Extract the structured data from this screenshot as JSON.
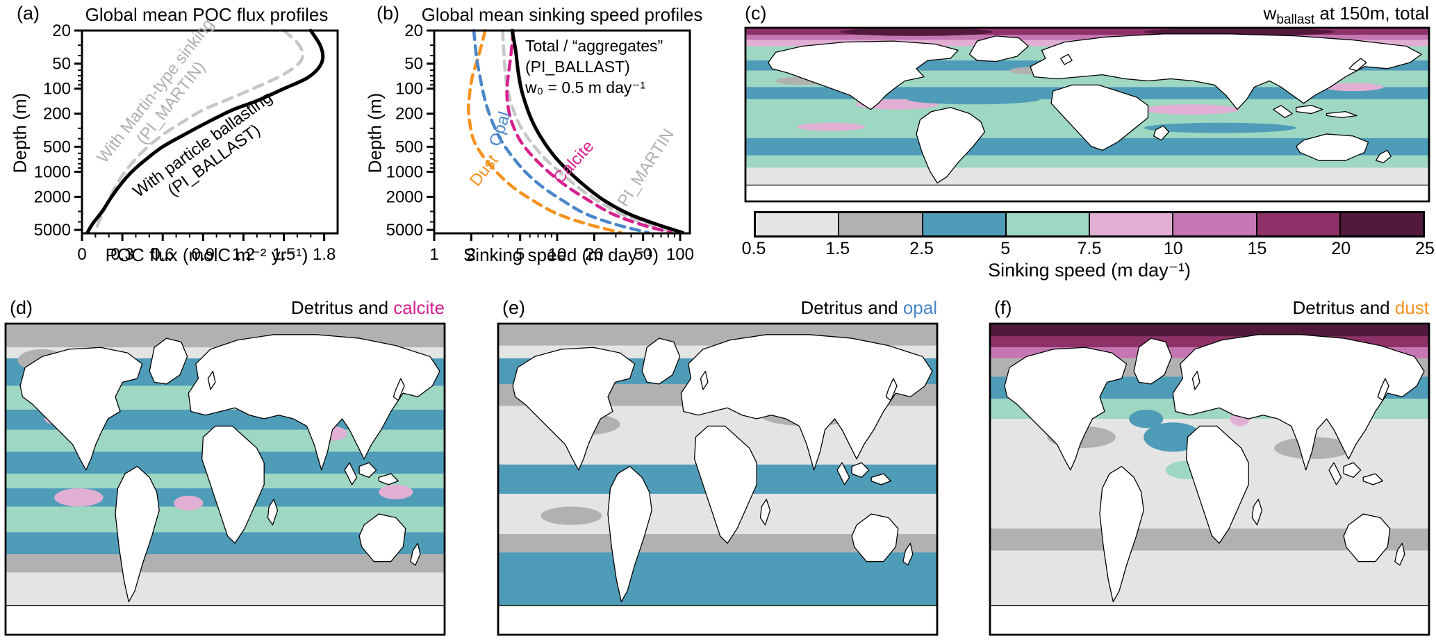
{
  "colors": {
    "black": "#000000",
    "gray_line": "#c6c6c6",
    "annotation_gray": "#b0b0b0",
    "opal_blue": "#4a86c9",
    "calcite_magenta": "#d6208e",
    "dust_orange": "#f6921e",
    "map_light_gray": "#e4e4e4",
    "map_gray": "#b1b1b1",
    "map_teal": "#4e9cb8",
    "map_seafoam": "#9ed7c2",
    "map_light_pink": "#e2afd4",
    "map_orchid": "#c477b2",
    "map_maroon": "#8f3169",
    "map_dark_maroon": "#53193d"
  },
  "panels": {
    "a": {
      "label": "(a)",
      "title": "Global mean POC flux profiles",
      "xlabel": "POC flux (molC m⁻² yr⁻¹)",
      "ylabel": "Depth (m)",
      "annotations": {
        "martin_line1": "With Martin-type sinking",
        "martin_line2": "(PI_MARTIN)",
        "ballast_line1": "With particle ballasting",
        "ballast_line2": "(PI_BALLAST)"
      }
    },
    "b": {
      "label": "(b)",
      "title": "Global mean sinking speed profiles",
      "xlabel": "Sinking speed (m day⁻¹)",
      "ylabel": "Depth (m)",
      "annotations": {
        "total_line1": "Total / “aggregates”",
        "total_line2": "(PI_BALLAST)",
        "total_line3": "w₀ = 0.5 m day⁻¹",
        "opal": "Opal",
        "calcite": "Calcite",
        "dust": "Dust",
        "martin": "PI_MARTIN"
      }
    },
    "c": {
      "label": "(c)",
      "title_prefix": "w",
      "title_sub": "ballast",
      "title_suffix": " at 150m, total",
      "colorbar_label": "Sinking speed (m day⁻¹)"
    },
    "d": {
      "label": "(d)",
      "title_prefix": "Detritus and ",
      "title_material": "calcite",
      "material_color": "#d6208e"
    },
    "e": {
      "label": "(e)",
      "title_prefix": "Detritus and ",
      "title_material": "opal",
      "material_color": "#4a86c9"
    },
    "f": {
      "label": "(f)",
      "title_prefix": "Detritus and ",
      "title_material": "dust",
      "material_color": "#f6921e"
    }
  },
  "chart_data": [
    {
      "id": "a",
      "type": "line",
      "title": "Global mean POC flux profiles",
      "xlabel": "POC flux (molC m⁻² yr⁻¹)",
      "ylabel": "Depth (m)",
      "x_scale": "linear",
      "x_range": [
        0,
        1.9
      ],
      "x_ticks": [
        0,
        0.3,
        0.6,
        0.9,
        1.2,
        1.5,
        1.8
      ],
      "x_minor": [
        0.1,
        0.2,
        0.4,
        0.5,
        0.7,
        0.8,
        1.0,
        1.1,
        1.3,
        1.4,
        1.6,
        1.7
      ],
      "y_scale": "log",
      "y_range": [
        20,
        5500
      ],
      "y_ticks": [
        20,
        50,
        100,
        200,
        500,
        1000,
        2000,
        5000
      ],
      "y_minor": [
        30,
        40,
        60,
        70,
        80,
        90,
        300,
        400,
        600,
        700,
        800,
        900,
        3000,
        4000
      ],
      "grid": false,
      "series": [
        {
          "name": "PI_MARTIN",
          "color": "#c6c6c6",
          "dash": "14 10",
          "width": 4.5,
          "points": [
            [
              1.5,
              20
            ],
            [
              1.6,
              28
            ],
            [
              1.64,
              38
            ],
            [
              1.61,
              50
            ],
            [
              1.48,
              70
            ],
            [
              1.27,
              100
            ],
            [
              1.06,
              140
            ],
            [
              0.9,
              180
            ],
            [
              0.75,
              250
            ],
            [
              0.61,
              350
            ],
            [
              0.49,
              500
            ],
            [
              0.4,
              700
            ],
            [
              0.32,
              1000
            ],
            [
              0.26,
              1400
            ],
            [
              0.21,
              2000
            ],
            [
              0.16,
              3000
            ],
            [
              0.12,
              4200
            ],
            [
              0.1,
              5400
            ]
          ]
        },
        {
          "name": "PI_BALLAST",
          "color": "#000000",
          "dash": null,
          "width": 5,
          "points": [
            [
              1.7,
              20
            ],
            [
              1.77,
              30
            ],
            [
              1.79,
              42
            ],
            [
              1.76,
              56
            ],
            [
              1.67,
              75
            ],
            [
              1.5,
              100
            ],
            [
              1.3,
              140
            ],
            [
              1.12,
              180
            ],
            [
              0.94,
              250
            ],
            [
              0.77,
              350
            ],
            [
              0.6,
              500
            ],
            [
              0.48,
              700
            ],
            [
              0.37,
              1000
            ],
            [
              0.29,
              1400
            ],
            [
              0.22,
              2000
            ],
            [
              0.15,
              3000
            ],
            [
              0.08,
              4200
            ],
            [
              0.04,
              5400
            ]
          ]
        }
      ]
    },
    {
      "id": "b",
      "type": "line",
      "title": "Global mean sinking speed profiles",
      "xlabel": "Sinking speed (m day⁻¹)",
      "ylabel": "Depth (m)",
      "x_scale": "log",
      "x_range": [
        1,
        120
      ],
      "x_ticks": [
        1,
        2,
        5,
        10,
        20,
        50,
        100
      ],
      "x_minor": [
        3,
        4,
        6,
        7,
        8,
        9,
        30,
        40,
        60,
        70,
        80,
        90
      ],
      "y_scale": "log",
      "y_range": [
        20,
        5500
      ],
      "y_ticks": [
        20,
        50,
        100,
        200,
        500,
        1000,
        2000,
        5000
      ],
      "y_minor": [
        30,
        40,
        60,
        70,
        80,
        90,
        300,
        400,
        600,
        700,
        800,
        900,
        3000,
        4000
      ],
      "grid": false,
      "w0_m_per_day": 0.5,
      "series": [
        {
          "name": "PI_MARTIN",
          "color": "#c6c6c6",
          "dash": "13 9",
          "width": 4.5,
          "points": [
            [
              3.6,
              20
            ],
            [
              3.7,
              40
            ],
            [
              3.8,
              70
            ],
            [
              4.0,
              110
            ],
            [
              4.4,
              180
            ],
            [
              5.0,
              280
            ],
            [
              6.2,
              450
            ],
            [
              8.0,
              700
            ],
            [
              10.5,
              1000
            ],
            [
              14.5,
              1500
            ],
            [
              21,
              2200
            ],
            [
              33,
              3200
            ],
            [
              55,
              4300
            ],
            [
              95,
              5400
            ]
          ]
        },
        {
          "name": "Dust",
          "color": "#f6921e",
          "dash": "13 9",
          "width": 4.5,
          "points": [
            [
              2.6,
              20
            ],
            [
              2.3,
              40
            ],
            [
              2.05,
              70
            ],
            [
              1.95,
              110
            ],
            [
              1.9,
              170
            ],
            [
              1.95,
              260
            ],
            [
              2.1,
              420
            ],
            [
              2.5,
              650
            ],
            [
              3.2,
              1000
            ],
            [
              4.3,
              1500
            ],
            [
              6.3,
              2200
            ],
            [
              10,
              3200
            ],
            [
              18,
              4300
            ],
            [
              33,
              5400
            ]
          ]
        },
        {
          "name": "Opal",
          "color": "#4a86c9",
          "dash": "13 9",
          "width": 4.5,
          "points": [
            [
              2.1,
              20
            ],
            [
              2.2,
              40
            ],
            [
              2.35,
              70
            ],
            [
              2.5,
              110
            ],
            [
              2.7,
              170
            ],
            [
              3.0,
              260
            ],
            [
              3.5,
              420
            ],
            [
              4.3,
              650
            ],
            [
              5.5,
              1000
            ],
            [
              7.5,
              1500
            ],
            [
              11,
              2200
            ],
            [
              17,
              3200
            ],
            [
              30,
              4300
            ],
            [
              55,
              5400
            ]
          ]
        },
        {
          "name": "Calcite",
          "color": "#d6208e",
          "dash": "13 9",
          "width": 4.5,
          "points": [
            [
              4.4,
              20
            ],
            [
              4.2,
              40
            ],
            [
              4.0,
              70
            ],
            [
              3.9,
              110
            ],
            [
              4.0,
              170
            ],
            [
              4.3,
              260
            ],
            [
              5.0,
              420
            ],
            [
              6.3,
              650
            ],
            [
              8.5,
              1000
            ],
            [
              12,
              1500
            ],
            [
              18,
              2200
            ],
            [
              28,
              3200
            ],
            [
              48,
              4300
            ],
            [
              85,
              5400
            ]
          ]
        },
        {
          "name": "Total",
          "color": "#000000",
          "dash": null,
          "width": 5,
          "points": [
            [
              4.3,
              20
            ],
            [
              4.6,
              35
            ],
            [
              4.8,
              60
            ],
            [
              5.1,
              100
            ],
            [
              5.6,
              160
            ],
            [
              6.3,
              250
            ],
            [
              7.5,
              400
            ],
            [
              9.5,
              650
            ],
            [
              12.5,
              1000
            ],
            [
              17,
              1500
            ],
            [
              24,
              2200
            ],
            [
              38,
              3200
            ],
            [
              65,
              4300
            ],
            [
              105,
              5400
            ]
          ]
        }
      ]
    },
    {
      "id": "colorbar",
      "type": "colorbar",
      "label": "Sinking speed (m day⁻¹)",
      "tick_labels": [
        "0.5",
        "1.5",
        "2.5",
        "5",
        "7.5",
        "10",
        "15",
        "20",
        "25"
      ],
      "segments": [
        "#e4e4e4",
        "#b1b1b1",
        "#4e9cb8",
        "#9ed7c2",
        "#e2afd4",
        "#c477b2",
        "#8f3169",
        "#53193d"
      ]
    },
    {
      "id": "c",
      "type": "map",
      "title": "w_ballast at 150m, total",
      "units": "m day⁻¹",
      "base": "#e4e4e4",
      "bands": [
        [
          0,
          7,
          "#8f3169"
        ],
        [
          7,
          5,
          "#c477b2"
        ],
        [
          12,
          6,
          "#e2afd4"
        ],
        [
          18,
          14,
          "#9ed7c2"
        ],
        [
          32,
          10,
          "#4e9cb8"
        ],
        [
          42,
          16,
          "#9ed7c2"
        ],
        [
          58,
          12,
          "#4e9cb8"
        ],
        [
          70,
          38,
          "#9ed7c2"
        ],
        [
          108,
          17,
          "#4e9cb8"
        ],
        [
          125,
          12,
          "#9ed7c2"
        ],
        [
          137,
          33,
          "#e4e4e4"
        ]
      ],
      "patches": [
        [
          55,
          36,
          26,
          5,
          "#e2afd4"
        ],
        [
          80,
          75,
          22,
          5,
          "#e2afd4"
        ],
        [
          235,
          80,
          25,
          5,
          "#e2afd4"
        ],
        [
          320,
          58,
          16,
          4,
          "#e2afd4"
        ],
        [
          45,
          97,
          18,
          4,
          "#e2afd4"
        ],
        [
          155,
          42,
          16,
          4,
          "#b1b1b1"
        ],
        [
          120,
          70,
          35,
          5,
          "#4e9cb8"
        ],
        [
          250,
          98,
          40,
          5,
          "#4e9cb8"
        ],
        [
          30,
          52,
          14,
          4,
          "#b1b1b1"
        ],
        [
          90,
          4,
          40,
          4,
          "#53193d"
        ],
        [
          260,
          4,
          50,
          4,
          "#53193d"
        ]
      ]
    },
    {
      "id": "d",
      "type": "map",
      "title": "Detritus and calcite",
      "base": "#e4e4e4",
      "bands": [
        [
          0,
          13,
          "#b1b1b1"
        ],
        [
          13,
          6,
          "#e4e4e4"
        ],
        [
          19,
          15,
          "#4e9cb8"
        ],
        [
          34,
          13,
          "#9ed7c2"
        ],
        [
          47,
          11,
          "#4e9cb8"
        ],
        [
          58,
          12,
          "#9ed7c2"
        ],
        [
          70,
          12,
          "#4e9cb8"
        ],
        [
          82,
          8,
          "#9ed7c2"
        ],
        [
          90,
          10,
          "#4e9cb8"
        ],
        [
          100,
          14,
          "#9ed7c2"
        ],
        [
          114,
          12,
          "#4e9cb8"
        ],
        [
          126,
          10,
          "#b1b1b1"
        ],
        [
          136,
          34,
          "#e4e4e4"
        ]
      ],
      "patches": [
        [
          48,
          52,
          16,
          4,
          "#e2afd4"
        ],
        [
          60,
          95,
          20,
          5,
          "#e2afd4"
        ],
        [
          150,
          98,
          12,
          4,
          "#e2afd4"
        ],
        [
          268,
          60,
          12,
          4,
          "#e2afd4"
        ],
        [
          320,
          92,
          14,
          4,
          "#e2afd4"
        ],
        [
          30,
          20,
          20,
          6,
          "#b1b1b1"
        ]
      ]
    },
    {
      "id": "e",
      "type": "map",
      "title": "Detritus and opal",
      "base": "#e4e4e4",
      "bands": [
        [
          0,
          12,
          "#b1b1b1"
        ],
        [
          12,
          7,
          "#e4e4e4"
        ],
        [
          19,
          14,
          "#4e9cb8"
        ],
        [
          33,
          12,
          "#b1b1b1"
        ],
        [
          45,
          32,
          "#e4e4e4"
        ],
        [
          77,
          16,
          "#4e9cb8"
        ],
        [
          93,
          22,
          "#e4e4e4"
        ],
        [
          115,
          10,
          "#b1b1b1"
        ],
        [
          125,
          45,
          "#4e9cb8"
        ]
      ],
      "patches": [
        [
          70,
          55,
          30,
          6,
          "#b1b1b1"
        ],
        [
          255,
          50,
          40,
          6,
          "#b1b1b1"
        ],
        [
          60,
          105,
          25,
          5,
          "#b1b1b1"
        ],
        [
          55,
          25,
          25,
          5,
          "#4e9cb8"
        ],
        [
          180,
          70,
          30,
          5,
          "#e4e4e4"
        ]
      ]
    },
    {
      "id": "f",
      "type": "map",
      "title": "Detritus and dust",
      "base": "#e4e4e4",
      "bands": [
        [
          0,
          7,
          "#53193d"
        ],
        [
          7,
          6,
          "#8f3169"
        ],
        [
          13,
          6,
          "#c477b2"
        ],
        [
          19,
          10,
          "#b1b1b1"
        ],
        [
          29,
          12,
          "#4e9cb8"
        ],
        [
          41,
          11,
          "#9ed7c2"
        ],
        [
          52,
          60,
          "#e4e4e4"
        ],
        [
          112,
          12,
          "#b1b1b1"
        ],
        [
          124,
          46,
          "#e4e4e4"
        ]
      ],
      "patches": [
        [
          150,
          62,
          24,
          8,
          "#4e9cb8"
        ],
        [
          162,
          80,
          18,
          5,
          "#9ed7c2"
        ],
        [
          128,
          52,
          14,
          5,
          "#4e9cb8"
        ],
        [
          205,
          52,
          8,
          4,
          "#e2afd4"
        ],
        [
          75,
          62,
          28,
          6,
          "#b1b1b1"
        ],
        [
          265,
          68,
          32,
          6,
          "#b1b1b1"
        ],
        [
          40,
          35,
          20,
          5,
          "#b1b1b1"
        ]
      ]
    }
  ]
}
